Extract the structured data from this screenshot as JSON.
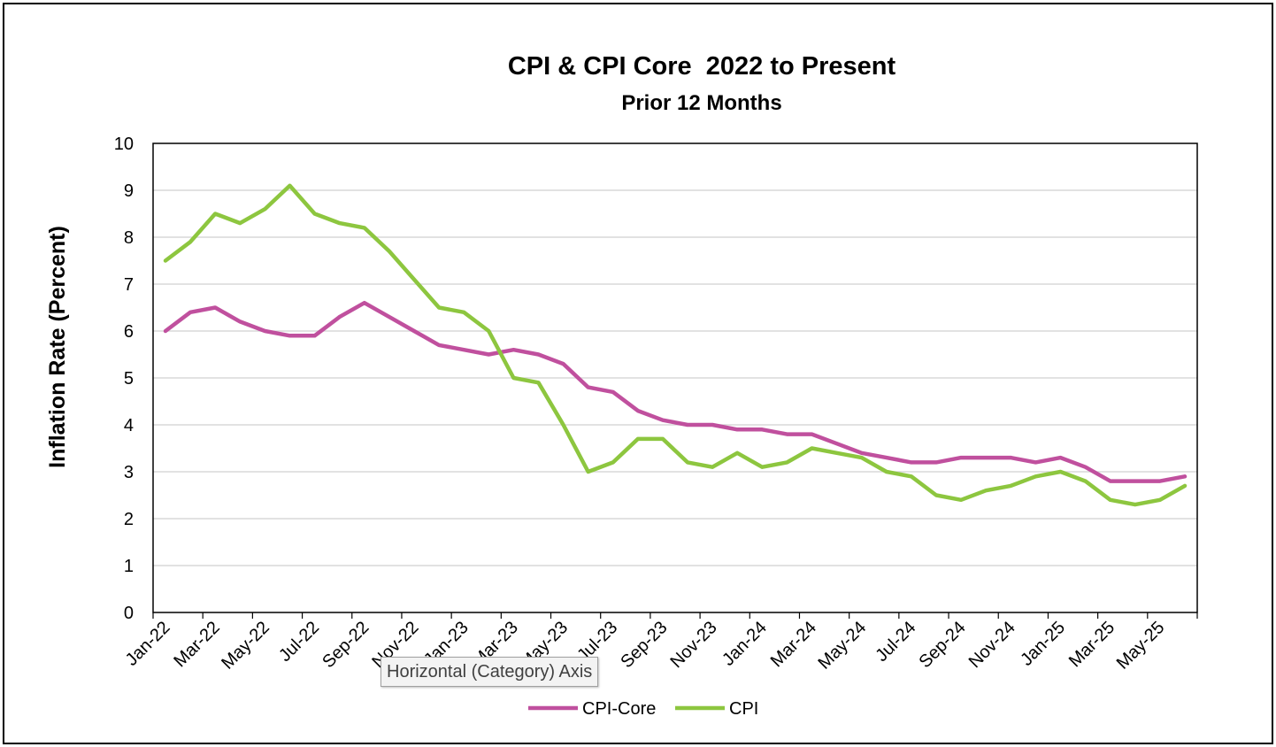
{
  "chart_data": {
    "type": "line",
    "title": "CPI & CPI Core  2022 to Present",
    "subtitle": "Prior 12 Months",
    "ylabel": "Inflation Rate (Percent)",
    "xlabel": "",
    "ylim": [
      0,
      10
    ],
    "yticks": [
      "0",
      "1",
      "2",
      "3",
      "4",
      "5",
      "6",
      "7",
      "8",
      "9",
      "10"
    ],
    "grid": true,
    "legend_position": "bottom",
    "x": [
      "Jan-22",
      "Feb-22",
      "Mar-22",
      "Apr-22",
      "May-22",
      "Jun-22",
      "Jul-22",
      "Aug-22",
      "Sep-22",
      "Oct-22",
      "Nov-22",
      "Dec-22",
      "Jan-23",
      "Feb-23",
      "Mar-23",
      "Apr-23",
      "May-23",
      "Jun-23",
      "Jul-23",
      "Aug-23",
      "Sep-23",
      "Oct-23",
      "Nov-23",
      "Dec-23",
      "Jan-24",
      "Feb-24",
      "Mar-24",
      "Apr-24",
      "May-24",
      "Jun-24",
      "Jul-24",
      "Aug-24",
      "Sep-24",
      "Oct-24",
      "Nov-24",
      "Dec-24",
      "Jan-25",
      "Feb-25",
      "Mar-25",
      "Apr-25",
      "May-25",
      "Jun-25"
    ],
    "xtick_labels": [
      "Jan-22",
      "Mar-22",
      "May-22",
      "Jul-22",
      "Sep-22",
      "Nov-22",
      "Jan-23",
      "Mar-23",
      "May-23",
      "Jul-23",
      "Sep-23",
      "Nov-23",
      "Jan-24",
      "Mar-24",
      "May-24",
      "Jul-24",
      "Sep-24",
      "Nov-24",
      "Jan-25",
      "Mar-25",
      "May-25"
    ],
    "series": [
      {
        "name": "CPI-Core",
        "color": "#c0509e",
        "values": [
          6.0,
          6.4,
          6.5,
          6.2,
          6.0,
          5.9,
          5.9,
          6.3,
          6.6,
          6.3,
          6.0,
          5.7,
          5.6,
          5.5,
          5.6,
          5.5,
          5.3,
          4.8,
          4.7,
          4.3,
          4.1,
          4.0,
          4.0,
          3.9,
          3.9,
          3.8,
          3.8,
          3.6,
          3.4,
          3.3,
          3.2,
          3.2,
          3.3,
          3.3,
          3.3,
          3.2,
          3.3,
          3.1,
          2.8,
          2.8,
          2.8,
          2.9
        ]
      },
      {
        "name": "CPI",
        "color": "#8dc63f",
        "values": [
          7.5,
          7.9,
          8.5,
          8.3,
          8.6,
          9.1,
          8.5,
          8.3,
          8.2,
          7.7,
          7.1,
          6.5,
          6.4,
          6.0,
          5.0,
          4.9,
          4.0,
          3.0,
          3.2,
          3.7,
          3.7,
          3.2,
          3.1,
          3.4,
          3.1,
          3.2,
          3.5,
          3.4,
          3.3,
          3.0,
          2.9,
          2.5,
          2.4,
          2.6,
          2.7,
          2.9,
          3.0,
          2.8,
          2.4,
          2.3,
          2.4,
          2.7
        ]
      }
    ]
  },
  "tooltip": {
    "text": "Horizontal (Category) Axis"
  }
}
